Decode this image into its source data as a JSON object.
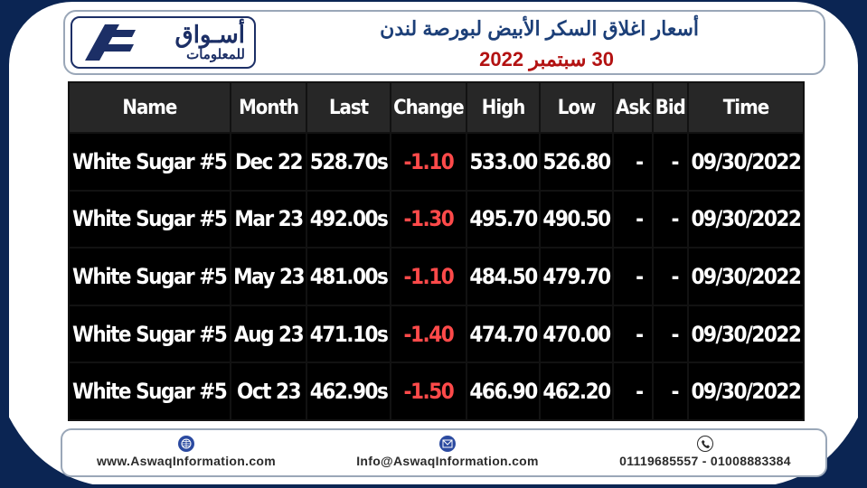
{
  "header": {
    "logo_ar_main": "أسـواق",
    "logo_ar_sub": "للمعلومات",
    "title": "أسعار اغلاق السكر الأبيض لبورصة لندن",
    "date": "30 سبتمبر 2022"
  },
  "table": {
    "columns": [
      "Name",
      "Month",
      "Last",
      "Change",
      "High",
      "Low",
      "Ask",
      "Bid",
      "Time"
    ],
    "rows": [
      [
        "White Sugar #5",
        "Dec 22",
        "528.70s",
        "-1.10",
        "533.00",
        "526.80",
        "-",
        "-",
        "09/30/2022"
      ],
      [
        "White Sugar #5",
        "Mar 23",
        "492.00s",
        "-1.30",
        "495.70",
        "490.50",
        "-",
        "-",
        "09/30/2022"
      ],
      [
        "White Sugar #5",
        "May 23",
        "481.00s",
        "-1.10",
        "484.50",
        "479.70",
        "-",
        "-",
        "09/30/2022"
      ],
      [
        "White Sugar #5",
        "Aug 23",
        "471.10s",
        "-1.40",
        "474.70",
        "470.00",
        "-",
        "-",
        "09/30/2022"
      ],
      [
        "White Sugar #5",
        "Oct 23",
        "462.90s",
        "-1.50",
        "466.90",
        "462.20",
        "-",
        "-",
        "09/30/2022"
      ]
    ]
  },
  "footer": {
    "website": "www.AswaqInformation.com",
    "email": "Info@AswaqInformation.com",
    "phone": "01119685557 - 01008883384",
    "website_icon": "globe-icon",
    "email_icon": "envelope-icon",
    "phone_icon": "phone-icon"
  },
  "colors": {
    "page_bg": "#0b2553",
    "brand_blue": "#1c2f66",
    "title_blue": "#1c3f78",
    "date_red": "#b31212",
    "change_red": "#ff4a4a"
  }
}
